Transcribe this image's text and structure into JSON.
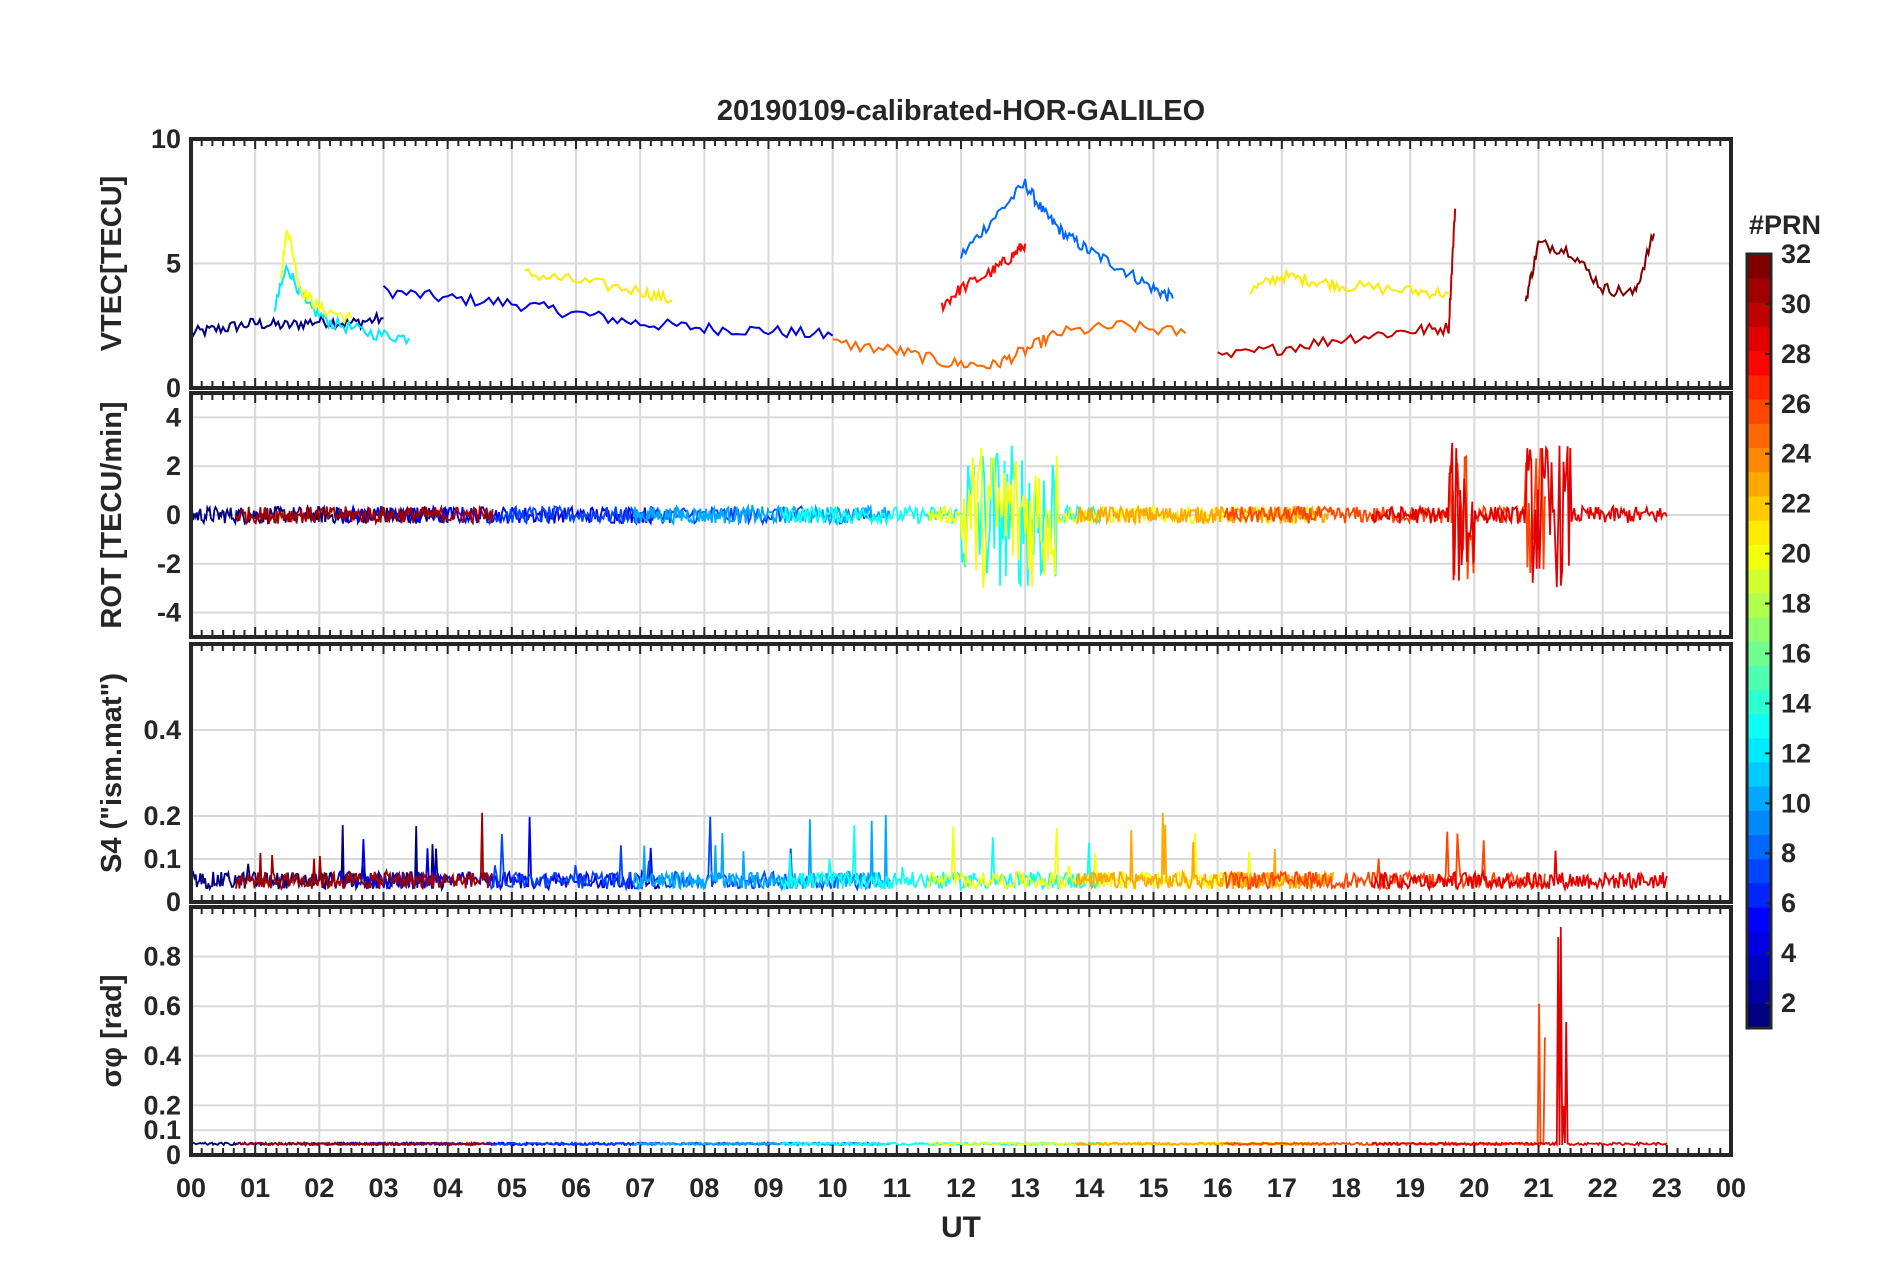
{
  "chart_data": [
    {
      "type": "line",
      "title": "20190109-calibrated-HOR-GALILEO",
      "ylabel": "VTEC[TECU]",
      "ylim": [
        0,
        10
      ],
      "yticks": [
        "0",
        "5",
        "10"
      ],
      "xlim": [
        0,
        24
      ],
      "grid": true,
      "series": [
        {
          "color_index": 0,
          "x": [
            0,
            0.5,
            1,
            1.5,
            2,
            2.5,
            3
          ],
          "y": [
            2.2,
            2.4,
            2.6,
            2.5,
            2.7,
            2.6,
            2.8
          ]
        },
        {
          "color_index": 3,
          "x": [
            3,
            4,
            5,
            6,
            7,
            8,
            9,
            10
          ],
          "y": [
            3.9,
            3.6,
            3.4,
            3.0,
            2.6,
            2.4,
            2.3,
            2.1
          ]
        },
        {
          "color_index": 7,
          "x": [
            12,
            12.5,
            13,
            13.3,
            13.6,
            14,
            14.5,
            15,
            15.3
          ],
          "y": [
            5.3,
            6.8,
            8.2,
            7.0,
            6.2,
            5.5,
            4.8,
            4.0,
            3.6
          ]
        },
        {
          "color_index": 11,
          "x": [
            1.3,
            1.5,
            1.8,
            2.2,
            2.8,
            3.4
          ],
          "y": [
            3.2,
            4.9,
            3.3,
            2.6,
            2.2,
            2.0
          ]
        },
        {
          "color_index": 19,
          "x": [
            1.4,
            1.5,
            1.7,
            2,
            2.5
          ],
          "y": [
            4.5,
            6.5,
            4.0,
            3.2,
            2.8
          ]
        },
        {
          "color_index": 20,
          "x": [
            5.2,
            6,
            7,
            7.5
          ],
          "y": [
            4.6,
            4.3,
            3.9,
            3.5
          ]
        },
        {
          "color_index": 20,
          "x": [
            16.5,
            17,
            17.5,
            18,
            19,
            19.6
          ],
          "y": [
            3.9,
            4.5,
            4.3,
            4.1,
            3.9,
            3.8
          ]
        },
        {
          "color_index": 24,
          "x": [
            10,
            11,
            11.8,
            12.5,
            13,
            13.5,
            14.5,
            15.5
          ],
          "y": [
            1.8,
            1.5,
            1.0,
            0.9,
            1.5,
            2.2,
            2.5,
            2.2
          ]
        },
        {
          "color_index": 27,
          "x": [
            11.7,
            12,
            12.5,
            12.8,
            13
          ],
          "y": [
            3.3,
            4.0,
            4.7,
            5.3,
            5.8
          ]
        },
        {
          "color_index": 29,
          "x": [
            16,
            17,
            18,
            19,
            19.6,
            19.7
          ],
          "y": [
            1.2,
            1.6,
            2.0,
            2.3,
            2.4,
            7.2
          ]
        },
        {
          "color_index": 31,
          "x": [
            20.8,
            21,
            21.5,
            22,
            22.5,
            22.8
          ],
          "y": [
            3.5,
            5.8,
            5.5,
            4.0,
            3.8,
            6.2
          ]
        }
      ]
    },
    {
      "type": "line",
      "ylabel": "ROT [TECU/min]",
      "ylim": [
        -5,
        5
      ],
      "yticks": [
        "-4",
        "-2",
        "0",
        "2",
        "4"
      ],
      "xlim": [
        0,
        24
      ],
      "grid": true
    },
    {
      "type": "line",
      "ylabel": "S4 (\"ism.mat\")",
      "ylim": [
        0,
        0.6
      ],
      "yticks": [
        "0",
        "0.1",
        "0.2",
        "0.4"
      ],
      "xlim": [
        0,
        24
      ],
      "grid": true
    },
    {
      "type": "line",
      "ylabel": "σφ [rad]",
      "ylim": [
        0,
        1
      ],
      "yticks": [
        "0",
        "0.1",
        "0.2",
        "0.4",
        "0.6",
        "0.8"
      ],
      "xlim": [
        0,
        24
      ],
      "grid": true
    }
  ],
  "xaxis": {
    "label": "UT",
    "ticks": [
      "00",
      "01",
      "02",
      "03",
      "04",
      "05",
      "06",
      "07",
      "08",
      "09",
      "10",
      "11",
      "12",
      "13",
      "14",
      "15",
      "16",
      "17",
      "18",
      "19",
      "20",
      "21",
      "22",
      "23",
      "00"
    ]
  },
  "colorbar": {
    "label": "#PRN",
    "range": [
      1,
      32
    ],
    "ticks": [
      "2",
      "4",
      "6",
      "8",
      "10",
      "12",
      "14",
      "16",
      "18",
      "20",
      "22",
      "24",
      "26",
      "28",
      "30",
      "32"
    ],
    "colormap": "jet"
  }
}
